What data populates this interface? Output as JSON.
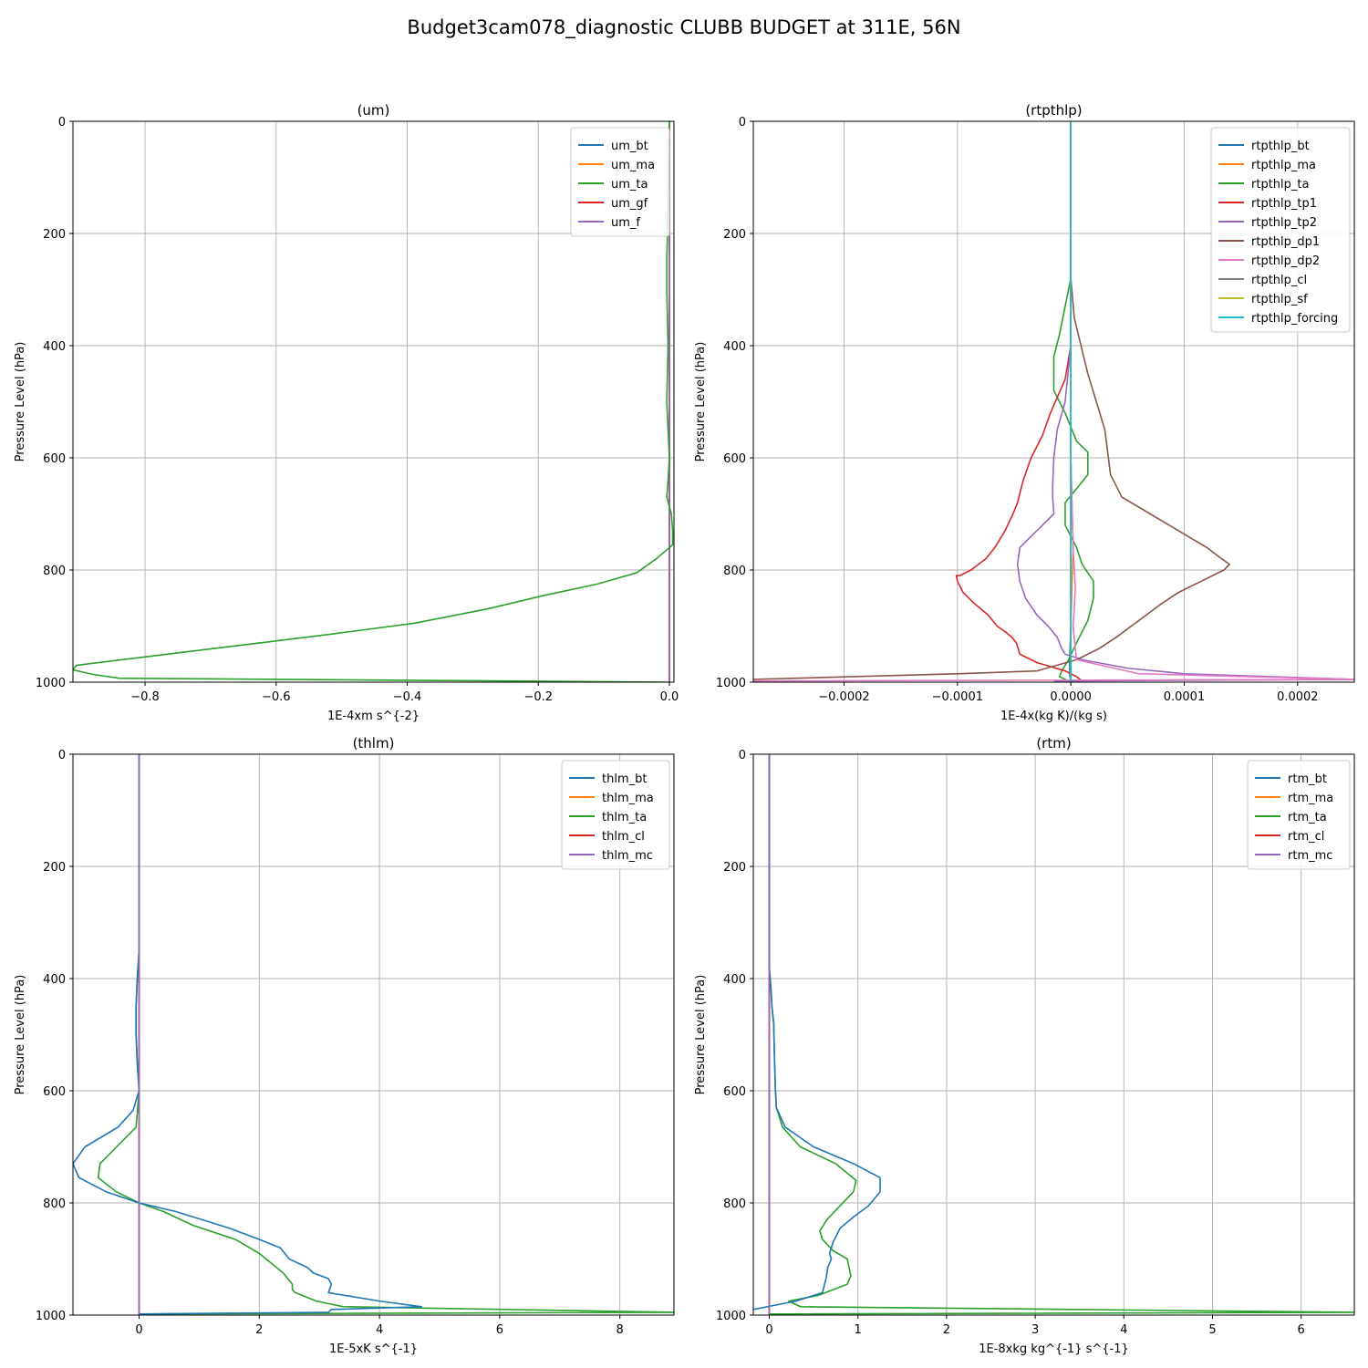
{
  "figure_title": "Budget3cam078_diagnostic CLUBB BUDGET at 311E, 56N",
  "colors": {
    "C0": "#1f77b4",
    "C1": "#ff7f0e",
    "C2": "#2ca02c",
    "C3": "#d62728",
    "C4": "#9467bd",
    "C5": "#8c564b",
    "C6": "#e377c2",
    "C7": "#7f7f7f",
    "C8": "#bcbd22",
    "C9": "#17becf",
    "grid": "#b0b0b0"
  },
  "chart_data": [
    {
      "type": "line",
      "title": "(um)",
      "xlabel": "1E-4xm s^{-2}",
      "ylabel": "Pressure Level (hPa)",
      "xlim": [
        -0.91,
        0.007
      ],
      "ylim": [
        1000,
        0
      ],
      "xticks": [
        -0.8,
        -0.6,
        -0.4,
        -0.2,
        0.0
      ],
      "xtick_labels": [
        "−0.8",
        "−0.6",
        "−0.4",
        "−0.2",
        "0.0"
      ],
      "yticks": [
        0,
        200,
        400,
        600,
        800,
        1000
      ],
      "grid": true,
      "legend_position": "upper right",
      "series": [
        {
          "name": "um_bt",
          "color": "#1f77b4",
          "x": [
            0,
            0,
            0
          ],
          "y": [
            0,
            500,
            1000
          ]
        },
        {
          "name": "um_ma",
          "color": "#ff7f0e",
          "x": [
            0,
            0,
            0
          ],
          "y": [
            0,
            500,
            1000
          ]
        },
        {
          "name": "um_gf",
          "color": "#d62728",
          "x": [
            0,
            0,
            0
          ],
          "y": [
            0,
            500,
            1000
          ]
        },
        {
          "name": "um_f",
          "color": "#9467bd",
          "x": [
            0,
            0,
            0
          ],
          "y": [
            0,
            500,
            1000
          ]
        },
        {
          "name": "um_ta",
          "color": "#2ca02c",
          "x": [
            0.0,
            -0.002,
            -0.003,
            -0.004,
            -0.004,
            -0.003,
            -0.002,
            -0.003,
            -0.004,
            -0.002,
            0.0,
            -0.002,
            -0.004,
            0.003,
            0.005,
            0.005,
            -0.02,
            -0.05,
            -0.11,
            -0.19,
            -0.28,
            -0.39,
            -0.52,
            -0.66,
            -0.8,
            -0.905,
            -0.91,
            -0.88,
            -0.84,
            -0.35,
            0.0
          ],
          "y": [
            0,
            100,
            200,
            250,
            300,
            350,
            400,
            450,
            500,
            550,
            600,
            640,
            670,
            700,
            730,
            755,
            780,
            805,
            825,
            845,
            870,
            895,
            915,
            935,
            955,
            970,
            978,
            986,
            993,
            997,
            1000
          ]
        }
      ]
    },
    {
      "type": "line",
      "title": "(rtpthlp)",
      "xlabel": "1E-4x(kg K)/(kg s)",
      "ylabel": "Pressure Level (hPa)",
      "xlim": [
        -0.00028,
        0.00025
      ],
      "ylim": [
        1000,
        0
      ],
      "xticks": [
        -0.0002,
        -0.0001,
        0.0,
        0.0001,
        0.0002
      ],
      "xtick_labels": [
        "−0.0002",
        "−0.0001",
        "0.0000",
        "0.0001",
        "0.0002"
      ],
      "yticks": [
        0,
        200,
        400,
        600,
        800,
        1000
      ],
      "grid": true,
      "legend_position": "upper right",
      "series": [
        {
          "name": "rtpthlp_bt",
          "color": "#1f77b4",
          "x": [
            0,
            0,
            0,
            -1e-06,
            -1e-06,
            0
          ],
          "y": [
            0,
            500,
            900,
            960,
            985,
            1000
          ]
        },
        {
          "name": "rtpthlp_ma",
          "color": "#ff7f0e",
          "x": [
            0,
            0,
            2e-06,
            0,
            0
          ],
          "y": [
            0,
            600,
            760,
            900,
            1000
          ]
        },
        {
          "name": "rtpthlp_ta",
          "color": "#2ca02c",
          "x": [
            0,
            0,
            -5e-06,
            -1e-05,
            -1.5e-05,
            -1.5e-05,
            -5e-06,
            5e-06,
            1.5e-05,
            1.5e-05,
            -5e-06,
            -5e-06,
            5e-06,
            1e-05,
            2e-05,
            2e-05,
            1.5e-05,
            5e-06,
            -2e-06,
            -8e-06,
            -1e-05,
            0
          ],
          "y": [
            0,
            280,
            330,
            380,
            420,
            480,
            520,
            570,
            590,
            630,
            680,
            720,
            760,
            790,
            820,
            850,
            890,
            930,
            960,
            980,
            990,
            1000
          ]
        },
        {
          "name": "rtpthlp_tp1",
          "color": "#d62728",
          "x": [
            0,
            0,
            -5e-06,
            -1.8e-05,
            -2.5e-05,
            -3.5e-05,
            -4.2e-05,
            -4.7e-05,
            -5.1e-05,
            -5.8e-05,
            -6.7e-05,
            -7.5e-05,
            -8.8e-05,
            -9.8e-05,
            -0.000101,
            -0.0001,
            -9.5e-05,
            -8.5e-05,
            -7.3e-05,
            -6.5e-05,
            -5.8e-05,
            -5.2e-05,
            -4.8e-05,
            -4.5e-05,
            -3e-05,
            -5e-06,
            5e-06,
            1e-05
          ],
          "y": [
            0,
            400,
            460,
            520,
            560,
            600,
            640,
            680,
            700,
            730,
            760,
            780,
            800,
            810,
            810,
            820,
            840,
            860,
            880,
            900,
            910,
            920,
            930,
            950,
            965,
            980,
            990,
            998
          ]
        },
        {
          "name": "rtpthlp_tp2",
          "color": "#9467bd",
          "x": [
            0,
            0,
            -5e-06,
            -1.2e-05,
            -1.5e-05,
            -1.6e-05,
            -1.6e-05,
            -1.5e-05,
            -3e-05,
            -4.5e-05,
            -4.7e-05,
            -4.5e-05,
            -4e-05,
            -3e-05,
            -2e-05,
            -1.2e-05,
            -8e-06,
            -5e-06,
            1e-05,
            5e-05,
            0.0001,
            0.00025,
            -1.5e-05
          ],
          "y": [
            0,
            400,
            500,
            550,
            600,
            650,
            670,
            700,
            730,
            760,
            790,
            820,
            850,
            880,
            900,
            920,
            940,
            950,
            960,
            975,
            985,
            995,
            998
          ]
        },
        {
          "name": "rtpthlp_dp1",
          "color": "#8c564b",
          "x": [
            0,
            0,
            3e-06,
            1.5e-05,
            3e-05,
            3.5e-05,
            4.5e-05,
            7e-05,
            9.5e-05,
            0.00012,
            0.000133,
            0.00014,
            0.000135,
            0.000115,
            9.5e-05,
            8e-05,
            6e-05,
            4e-05,
            2.5e-05,
            5e-06,
            -3e-05,
            -0.0001,
            -0.00028
          ],
          "y": [
            0,
            280,
            350,
            450,
            550,
            630,
            670,
            700,
            730,
            760,
            780,
            790,
            800,
            820,
            840,
            860,
            890,
            920,
            940,
            960,
            980,
            985,
            995
          ]
        },
        {
          "name": "rtpthlp_dp2",
          "color": "#e377c2",
          "x": [
            0,
            0,
            2e-06,
            4e-06,
            3e-06,
            2e-06,
            5e-06,
            6e-05,
            0.00025,
            -0.00028
          ],
          "y": [
            0,
            600,
            760,
            830,
            870,
            900,
            960,
            985,
            995,
            998
          ]
        },
        {
          "name": "rtpthlp_cl",
          "color": "#7f7f7f",
          "x": [
            0,
            0,
            0
          ],
          "y": [
            0,
            500,
            1000
          ]
        },
        {
          "name": "rtpthlp_sf",
          "color": "#bcbd22",
          "x": [
            0,
            0,
            0
          ],
          "y": [
            0,
            500,
            1000
          ]
        },
        {
          "name": "rtpthlp_forcing",
          "color": "#17becf",
          "x": [
            0,
            0,
            0
          ],
          "y": [
            0,
            500,
            1000
          ]
        }
      ]
    },
    {
      "type": "line",
      "title": "(thlm)",
      "xlabel": "1E-5xK s^{-1}",
      "ylabel": "Pressure Level (hPa)",
      "xlim": [
        -1.1,
        8.9
      ],
      "ylim": [
        1000,
        0
      ],
      "xticks": [
        0,
        2,
        4,
        6,
        8
      ],
      "xtick_labels": [
        "0",
        "2",
        "4",
        "6",
        "8"
      ],
      "yticks": [
        0,
        200,
        400,
        600,
        800,
        1000
      ],
      "grid": true,
      "legend_position": "upper right",
      "series": [
        {
          "name": "thlm_ma",
          "color": "#ff7f0e",
          "x": [
            0,
            0,
            0
          ],
          "y": [
            0,
            500,
            1000
          ]
        },
        {
          "name": "thlm_cl",
          "color": "#d62728",
          "x": [
            0,
            0,
            0
          ],
          "y": [
            0,
            500,
            1000
          ]
        },
        {
          "name": "thlm_ta",
          "color": "#2ca02c",
          "x": [
            0,
            0,
            -0.03,
            -0.05,
            -0.05,
            -0.03,
            0,
            -0.05,
            -0.65,
            -0.68,
            -0.38,
            0,
            0.4,
            0.9,
            1.6,
            2.0,
            2.4,
            2.55,
            2.55,
            2.6,
            2.95,
            3.4,
            8.9,
            0
          ],
          "y": [
            0,
            350,
            400,
            450,
            500,
            550,
            600,
            665,
            730,
            755,
            780,
            800,
            815,
            840,
            865,
            890,
            925,
            945,
            955,
            960,
            975,
            985,
            995,
            998
          ]
        },
        {
          "name": "thlm_bt",
          "color": "#1f77b4",
          "x": [
            0,
            0,
            -0.03,
            -0.05,
            -0.05,
            -0.03,
            0,
            -0.1,
            -0.35,
            -0.9,
            -1.1,
            -1.0,
            -0.55,
            0,
            0.6,
            1.5,
            2.0,
            2.35,
            2.5,
            2.8,
            2.9,
            3.15,
            3.2,
            3.15,
            4.0,
            4.7,
            3.2,
            3.15,
            0
          ],
          "y": [
            0,
            350,
            400,
            450,
            500,
            550,
            600,
            635,
            665,
            700,
            730,
            755,
            780,
            800,
            815,
            845,
            865,
            880,
            900,
            915,
            925,
            935,
            945,
            960,
            975,
            985,
            990,
            995,
            998
          ]
        },
        {
          "name": "thlm_mc",
          "color": "#9467bd",
          "x": [
            0,
            0,
            0
          ],
          "y": [
            0,
            500,
            1000
          ]
        }
      ]
    },
    {
      "type": "line",
      "title": "(rtm)",
      "xlabel": "1E-8xkg kg^{-1} s^{-1}",
      "ylabel": "Pressure Level (hPa)",
      "xlim": [
        -0.18,
        6.6
      ],
      "ylim": [
        1000,
        0
      ],
      "xticks": [
        0,
        1,
        2,
        3,
        4,
        5,
        6
      ],
      "xtick_labels": [
        "0",
        "1",
        "2",
        "3",
        "4",
        "5",
        "6"
      ],
      "yticks": [
        0,
        200,
        400,
        600,
        800,
        1000
      ],
      "grid": true,
      "legend_position": "upper right",
      "series": [
        {
          "name": "rtm_ma",
          "color": "#ff7f0e",
          "x": [
            0,
            0,
            0
          ],
          "y": [
            0,
            500,
            1000
          ]
        },
        {
          "name": "rtm_cl",
          "color": "#d62728",
          "x": [
            0,
            0,
            0
          ],
          "y": [
            0,
            500,
            1000
          ]
        },
        {
          "name": "rtm_ta",
          "color": "#2ca02c",
          "x": [
            0,
            0,
            0.02,
            0.03,
            0.05,
            0.06,
            0.07,
            0.08,
            0.15,
            0.35,
            0.75,
            0.98,
            0.95,
            0.8,
            0.65,
            0.57,
            0.6,
            0.72,
            0.88,
            0.92,
            0.88,
            0.55,
            0.22,
            0.35,
            6.6,
            0
          ],
          "y": [
            0,
            380,
            420,
            450,
            480,
            550,
            600,
            630,
            665,
            700,
            730,
            760,
            780,
            805,
            830,
            850,
            865,
            885,
            900,
            930,
            945,
            965,
            975,
            985,
            995,
            998
          ]
        },
        {
          "name": "rtm_bt",
          "color": "#1f77b4",
          "x": [
            0,
            0,
            0.02,
            0.03,
            0.05,
            0.06,
            0.07,
            0.08,
            0.18,
            0.5,
            0.95,
            1.25,
            1.25,
            1.12,
            0.95,
            0.8,
            0.72,
            0.68,
            0.7,
            0.66,
            0.64,
            0.6,
            0.3,
            -0.18
          ],
          "y": [
            0,
            380,
            420,
            450,
            480,
            550,
            600,
            630,
            665,
            700,
            730,
            755,
            780,
            805,
            825,
            845,
            870,
            890,
            900,
            915,
            935,
            960,
            975,
            990
          ]
        },
        {
          "name": "rtm_mc",
          "color": "#9467bd",
          "x": [
            0,
            0,
            0
          ],
          "y": [
            0,
            500,
            1000
          ]
        }
      ]
    }
  ]
}
